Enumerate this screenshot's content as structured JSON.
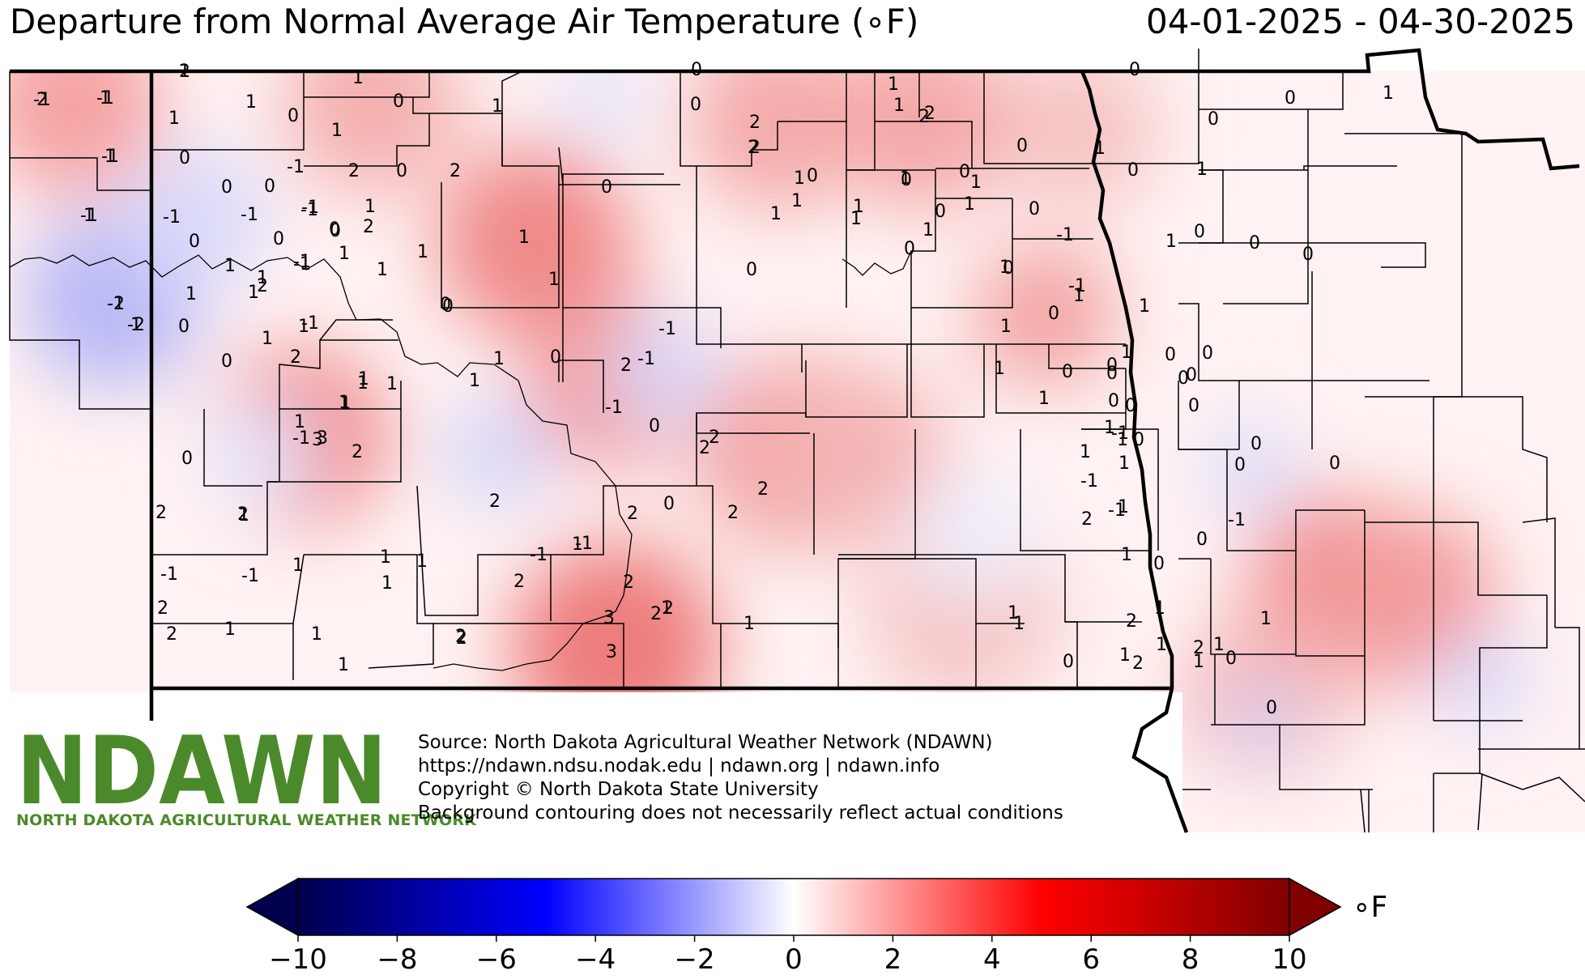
{
  "header": {
    "title": "Departure from Normal Average Air Temperature (∘F)",
    "date_range": "04-01-2025 - 04-30-2025"
  },
  "map": {
    "station_values": [
      {
        "label": "2"
      },
      {
        "label": "1"
      },
      {
        "label": "1"
      },
      {
        "label": "-1"
      },
      {
        "label": "-2"
      },
      {
        "label": "-2"
      },
      {
        "label": "2"
      },
      {
        "label": "1"
      },
      {
        "label": "1"
      },
      {
        "label": "0"
      },
      {
        "label": "1"
      },
      {
        "label": "0"
      },
      {
        "label": "1"
      },
      {
        "label": "0"
      },
      {
        "label": "-1"
      },
      {
        "label": "-1"
      },
      {
        "label": "-1"
      },
      {
        "label": "-1"
      },
      {
        "label": "0"
      },
      {
        "label": "0"
      },
      {
        "label": "0"
      },
      {
        "label": "1"
      },
      {
        "label": "-1"
      },
      {
        "label": "1"
      },
      {
        "label": "-1"
      },
      {
        "label": "0"
      },
      {
        "label": "0"
      },
      {
        "label": "2"
      },
      {
        "label": "-1"
      },
      {
        "label": "0"
      },
      {
        "label": "1"
      },
      {
        "label": "1"
      },
      {
        "label": "2"
      },
      {
        "label": "1"
      },
      {
        "label": "0"
      },
      {
        "label": "2"
      },
      {
        "label": "1"
      },
      {
        "label": "0"
      },
      {
        "label": "0"
      },
      {
        "label": "1"
      },
      {
        "label": "1"
      },
      {
        "label": "1"
      },
      {
        "label": "2"
      },
      {
        "label": "1"
      },
      {
        "label": "2"
      },
      {
        "label": "0"
      },
      {
        "label": "1"
      },
      {
        "label": "-1"
      },
      {
        "label": "1"
      },
      {
        "label": "3"
      },
      {
        "label": "1"
      },
      {
        "label": "-1"
      },
      {
        "label": "2"
      },
      {
        "label": "0"
      },
      {
        "label": "2"
      },
      {
        "label": "1"
      },
      {
        "label": "1"
      },
      {
        "label": "1"
      },
      {
        "label": "2"
      },
      {
        "label": "-1"
      },
      {
        "label": "1"
      },
      {
        "label": "2"
      },
      {
        "label": "-1"
      },
      {
        "label": "2"
      },
      {
        "label": "1"
      },
      {
        "label": "1"
      },
      {
        "label": "1"
      },
      {
        "label": "1"
      },
      {
        "label": "2"
      },
      {
        "label": "0"
      },
      {
        "label": "1"
      },
      {
        "label": "1"
      },
      {
        "label": "1"
      },
      {
        "label": "-1"
      },
      {
        "label": "-1"
      },
      {
        "label": "2"
      },
      {
        "label": "0"
      },
      {
        "label": "1"
      },
      {
        "label": "1"
      },
      {
        "label": "2"
      },
      {
        "label": "1"
      },
      {
        "label": "2"
      },
      {
        "label": "3"
      },
      {
        "label": "1"
      },
      {
        "label": "1"
      },
      {
        "label": "2"
      },
      {
        "label": "-1"
      },
      {
        "label": "0"
      },
      {
        "label": "0"
      },
      {
        "label": "2"
      },
      {
        "label": "0"
      },
      {
        "label": "3"
      },
      {
        "label": "2"
      },
      {
        "label": "2"
      },
      {
        "label": "1"
      },
      {
        "label": "2"
      },
      {
        "label": "0"
      },
      {
        "label": "-1"
      },
      {
        "label": "-1"
      },
      {
        "label": "0"
      },
      {
        "label": "2"
      },
      {
        "label": "2"
      },
      {
        "label": "2"
      },
      {
        "label": "2"
      },
      {
        "label": "3"
      },
      {
        "label": "2"
      },
      {
        "label": "2"
      },
      {
        "label": "1"
      },
      {
        "label": "1"
      },
      {
        "label": "1"
      },
      {
        "label": "0"
      },
      {
        "label": "1"
      },
      {
        "label": "1"
      },
      {
        "label": "2"
      },
      {
        "label": "1"
      },
      {
        "label": "1"
      },
      {
        "label": "0"
      },
      {
        "label": "1"
      },
      {
        "label": "1"
      },
      {
        "label": "0"
      },
      {
        "label": "0"
      },
      {
        "label": "2"
      },
      {
        "label": "0"
      },
      {
        "label": "1"
      },
      {
        "label": "2"
      },
      {
        "label": "0"
      },
      {
        "label": "1"
      },
      {
        "label": "1"
      },
      {
        "label": "1"
      },
      {
        "label": "1"
      },
      {
        "label": "0"
      },
      {
        "label": "-1"
      },
      {
        "label": "1"
      },
      {
        "label": "0"
      },
      {
        "label": "0"
      },
      {
        "label": "0"
      },
      {
        "label": "0"
      },
      {
        "label": "0"
      },
      {
        "label": "1"
      },
      {
        "label": "-1"
      },
      {
        "label": "0"
      },
      {
        "label": "1"
      },
      {
        "label": "0"
      },
      {
        "label": "1"
      },
      {
        "label": "1"
      },
      {
        "label": "1"
      },
      {
        "label": "0"
      },
      {
        "label": "0"
      },
      {
        "label": "0"
      },
      {
        "label": "0"
      },
      {
        "label": "0"
      },
      {
        "label": "1"
      },
      {
        "label": "1"
      },
      {
        "label": "1"
      },
      {
        "label": "1"
      },
      {
        "label": "0"
      },
      {
        "label": "0"
      },
      {
        "label": "1"
      },
      {
        "label": "0"
      },
      {
        "label": "0"
      },
      {
        "label": "0"
      },
      {
        "label": "1"
      },
      {
        "label": "0"
      },
      {
        "label": "0"
      },
      {
        "label": "-1"
      },
      {
        "label": "0"
      },
      {
        "label": "1"
      },
      {
        "label": "0"
      },
      {
        "label": "0"
      },
      {
        "label": "0"
      },
      {
        "label": "0"
      },
      {
        "label": "-1"
      },
      {
        "label": "1"
      },
      {
        "label": "-1"
      },
      {
        "label": "1"
      },
      {
        "label": "0"
      },
      {
        "label": "1"
      },
      {
        "label": "1"
      },
      {
        "label": "-1"
      },
      {
        "label": "0"
      },
      {
        "label": "2"
      },
      {
        "label": "2"
      },
      {
        "label": "2"
      },
      {
        "label": "1"
      },
      {
        "label": "1"
      },
      {
        "label": "1"
      },
      {
        "label": "0"
      },
      {
        "label": "1"
      },
      {
        "label": "1"
      },
      {
        "label": "1"
      },
      {
        "label": "0"
      },
      {
        "label": "2"
      },
      {
        "label": "0"
      },
      {
        "label": "1"
      },
      {
        "label": "-1"
      },
      {
        "label": "-1"
      },
      {
        "label": "-1"
      },
      {
        "label": "1"
      },
      {
        "label": "-1"
      },
      {
        "label": "1"
      },
      {
        "label": "1"
      }
    ]
  },
  "logo": {
    "text": "NDAWN",
    "subtitle": "NORTH DAKOTA AGRICULTURAL WEATHER NETWORK"
  },
  "source": {
    "lines": [
      "Source: North Dakota Agricultural Weather Network (NDAWN)",
      "https://ndawn.ndsu.nodak.edu | ndawn.org | ndawn.info",
      "Copyright © North Dakota State University",
      "Background contouring does not necessarily reflect actual conditions"
    ]
  },
  "colorbar": {
    "unit": "∘F",
    "min": -10,
    "max": 10,
    "ticks": [
      "−10",
      "−8",
      "−6",
      "−4",
      "−2",
      "0",
      "2",
      "4",
      "6",
      "8",
      "10"
    ],
    "colors": {
      "low": "#00004c",
      "mid_low": "#0000ff",
      "zero": "#ffffff",
      "mid_high": "#ff0000",
      "high": "#800000"
    }
  }
}
